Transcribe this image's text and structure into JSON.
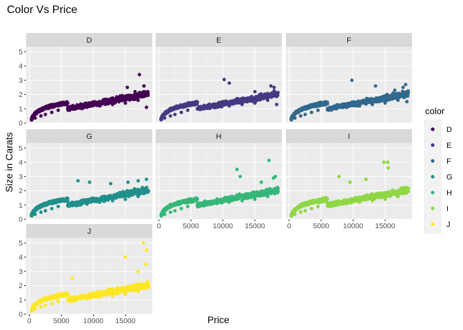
{
  "chart_data": {
    "type": "scatter",
    "title": "Color Vs Price",
    "xlabel": "Price",
    "ylabel": "Size in Carats",
    "xlim": [
      -500,
      19200
    ],
    "ylim": [
      0,
      5.35
    ],
    "x_ticks": [
      0,
      5000,
      10000,
      15000
    ],
    "x_tick_labels": [
      "0",
      "5000",
      "10000",
      "15000"
    ],
    "y_ticks": [
      0,
      1,
      2,
      3,
      4,
      5
    ],
    "y_tick_labels": [
      "0",
      "1",
      "2",
      "3",
      "4",
      "5"
    ],
    "grid": true,
    "facet_by": "color",
    "legend": {
      "title": "color",
      "position": "right",
      "entries": [
        "D",
        "E",
        "F",
        "G",
        "H",
        "I",
        "J"
      ]
    },
    "series": [
      {
        "name": "D",
        "color": "#440154",
        "max_carat": 3.4,
        "points": [
          [
            400,
            0.25
          ],
          [
            900,
            0.35
          ],
          [
            1800,
            0.5
          ],
          [
            2500,
            0.6
          ],
          [
            3500,
            0.75
          ],
          [
            4500,
            0.9
          ],
          [
            6000,
            1.0
          ],
          [
            7500,
            1.05
          ],
          [
            9000,
            1.1
          ],
          [
            11000,
            1.2
          ],
          [
            13000,
            1.3
          ],
          [
            15000,
            1.4
          ],
          [
            17000,
            1.6
          ],
          [
            18500,
            2.0
          ],
          [
            14200,
            1.9
          ],
          [
            16500,
            2.2
          ],
          [
            17900,
            2.6
          ],
          [
            15300,
            2.5
          ],
          [
            17200,
            3.4
          ],
          [
            18300,
            1.1
          ]
        ]
      },
      {
        "name": "E",
        "color": "#443A83",
        "max_carat": 3.05,
        "points": [
          [
            400,
            0.25
          ],
          [
            900,
            0.35
          ],
          [
            1800,
            0.5
          ],
          [
            2500,
            0.6
          ],
          [
            3500,
            0.75
          ],
          [
            4500,
            0.9
          ],
          [
            6000,
            1.0
          ],
          [
            7500,
            1.05
          ],
          [
            9000,
            1.1
          ],
          [
            11000,
            1.2
          ],
          [
            13000,
            1.3
          ],
          [
            15000,
            1.4
          ],
          [
            17000,
            1.6
          ],
          [
            18500,
            2.0
          ],
          [
            10200,
            3.05
          ],
          [
            11000,
            2.8
          ],
          [
            17500,
            2.6
          ],
          [
            18000,
            2.5
          ],
          [
            15000,
            2.2
          ],
          [
            18400,
            1.3
          ]
        ]
      },
      {
        "name": "F",
        "color": "#31688E",
        "max_carat": 3.0,
        "points": [
          [
            400,
            0.25
          ],
          [
            900,
            0.35
          ],
          [
            1800,
            0.5
          ],
          [
            2500,
            0.6
          ],
          [
            3500,
            0.75
          ],
          [
            4500,
            0.9
          ],
          [
            6000,
            1.0
          ],
          [
            7500,
            1.05
          ],
          [
            9000,
            1.1
          ],
          [
            11000,
            1.2
          ],
          [
            13000,
            1.3
          ],
          [
            15000,
            1.4
          ],
          [
            17000,
            1.6
          ],
          [
            18500,
            2.0
          ],
          [
            9800,
            3.0
          ],
          [
            13500,
            2.6
          ],
          [
            16500,
            2.3
          ],
          [
            18200,
            2.7
          ],
          [
            17800,
            2.5
          ],
          [
            18400,
            1.5
          ]
        ]
      },
      {
        "name": "G",
        "color": "#21908C",
        "max_carat": 2.8,
        "points": [
          [
            400,
            0.25
          ],
          [
            900,
            0.35
          ],
          [
            1800,
            0.5
          ],
          [
            2500,
            0.6
          ],
          [
            3500,
            0.75
          ],
          [
            4500,
            0.9
          ],
          [
            6000,
            1.0
          ],
          [
            7500,
            1.05
          ],
          [
            9000,
            1.1
          ],
          [
            11000,
            1.2
          ],
          [
            13000,
            1.3
          ],
          [
            15000,
            1.4
          ],
          [
            17000,
            1.6
          ],
          [
            18500,
            2.0
          ],
          [
            7600,
            2.7
          ],
          [
            9400,
            2.6
          ],
          [
            12700,
            2.5
          ],
          [
            15400,
            2.6
          ],
          [
            18300,
            2.8
          ],
          [
            17000,
            2.7
          ]
        ]
      },
      {
        "name": "H",
        "color": "#35B779",
        "max_carat": 4.13,
        "points": [
          [
            400,
            0.25
          ],
          [
            900,
            0.35
          ],
          [
            1800,
            0.5
          ],
          [
            2500,
            0.6
          ],
          [
            3500,
            0.75
          ],
          [
            4500,
            0.9
          ],
          [
            6000,
            1.0
          ],
          [
            7500,
            1.05
          ],
          [
            9000,
            1.1
          ],
          [
            11000,
            1.2
          ],
          [
            13000,
            1.3
          ],
          [
            15000,
            1.4
          ],
          [
            17000,
            1.6
          ],
          [
            18500,
            2.0
          ],
          [
            12200,
            3.5
          ],
          [
            12700,
            3.0
          ],
          [
            17200,
            4.13
          ],
          [
            17900,
            2.9
          ],
          [
            18200,
            3.0
          ],
          [
            16000,
            2.6
          ]
        ]
      },
      {
        "name": "I",
        "color": "#8FD744",
        "max_carat": 4.0,
        "points": [
          [
            400,
            0.25
          ],
          [
            900,
            0.35
          ],
          [
            1800,
            0.5
          ],
          [
            2500,
            0.6
          ],
          [
            3500,
            0.75
          ],
          [
            4500,
            0.9
          ],
          [
            6000,
            1.0
          ],
          [
            7500,
            1.05
          ],
          [
            9000,
            1.1
          ],
          [
            11000,
            1.2
          ],
          [
            13000,
            1.3
          ],
          [
            15000,
            1.4
          ],
          [
            17000,
            1.6
          ],
          [
            18500,
            2.0
          ],
          [
            7800,
            3.0
          ],
          [
            9500,
            2.6
          ],
          [
            12000,
            2.8
          ],
          [
            14800,
            4.0
          ],
          [
            15400,
            4.0
          ],
          [
            15500,
            3.6
          ]
        ]
      },
      {
        "name": "J",
        "color": "#FDE725",
        "max_carat": 5.01,
        "points": [
          [
            400,
            0.25
          ],
          [
            900,
            0.35
          ],
          [
            1800,
            0.5
          ],
          [
            2500,
            0.6
          ],
          [
            3500,
            0.75
          ],
          [
            4500,
            0.9
          ],
          [
            6000,
            1.0
          ],
          [
            7500,
            1.05
          ],
          [
            9000,
            1.1
          ],
          [
            11000,
            1.2
          ],
          [
            13000,
            1.3
          ],
          [
            15000,
            1.4
          ],
          [
            17000,
            1.6
          ],
          [
            18500,
            2.0
          ],
          [
            15000,
            4.0
          ],
          [
            17800,
            5.0
          ],
          [
            18300,
            4.5
          ],
          [
            18200,
            3.5
          ],
          [
            17000,
            3.0
          ],
          [
            6700,
            2.5
          ]
        ]
      }
    ]
  }
}
